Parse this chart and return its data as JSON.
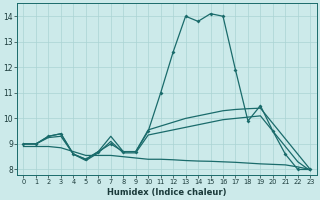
{
  "xlabel": "Humidex (Indice chaleur)",
  "xlim": [
    -0.5,
    23.5
  ],
  "ylim": [
    7.8,
    14.5
  ],
  "yticks": [
    8,
    9,
    10,
    11,
    12,
    13,
    14
  ],
  "xticks": [
    0,
    1,
    2,
    3,
    4,
    5,
    6,
    7,
    8,
    9,
    10,
    11,
    12,
    13,
    14,
    15,
    16,
    17,
    18,
    19,
    20,
    21,
    22,
    23
  ],
  "bg_color": "#cceaea",
  "grid_color": "#aad4d4",
  "line_color": "#1a6b6b",
  "main_line": [
    9.0,
    9.0,
    9.3,
    9.4,
    8.6,
    8.4,
    8.7,
    9.0,
    8.7,
    8.7,
    9.5,
    11.0,
    12.6,
    14.0,
    13.8,
    14.1,
    14.0,
    11.9,
    9.9,
    10.5,
    9.5,
    8.6,
    8.0,
    8.0
  ],
  "smooth1": [
    9.0,
    9.0,
    9.3,
    9.4,
    8.6,
    8.4,
    8.7,
    9.3,
    8.7,
    8.7,
    9.55,
    9.7,
    9.85,
    10.0,
    10.1,
    10.2,
    10.3,
    10.35,
    10.38,
    10.4,
    9.8,
    9.2,
    8.6,
    8.0
  ],
  "smooth2": [
    9.0,
    9.0,
    9.25,
    9.3,
    8.6,
    8.35,
    8.65,
    9.1,
    8.65,
    8.65,
    9.35,
    9.45,
    9.55,
    9.65,
    9.75,
    9.85,
    9.95,
    10.0,
    10.05,
    10.1,
    9.5,
    8.9,
    8.3,
    7.95
  ],
  "smooth3": [
    8.9,
    8.9,
    8.9,
    8.85,
    8.7,
    8.55,
    8.55,
    8.55,
    8.5,
    8.45,
    8.4,
    8.4,
    8.38,
    8.35,
    8.33,
    8.32,
    8.3,
    8.28,
    8.25,
    8.22,
    8.2,
    8.18,
    8.1,
    8.0
  ]
}
